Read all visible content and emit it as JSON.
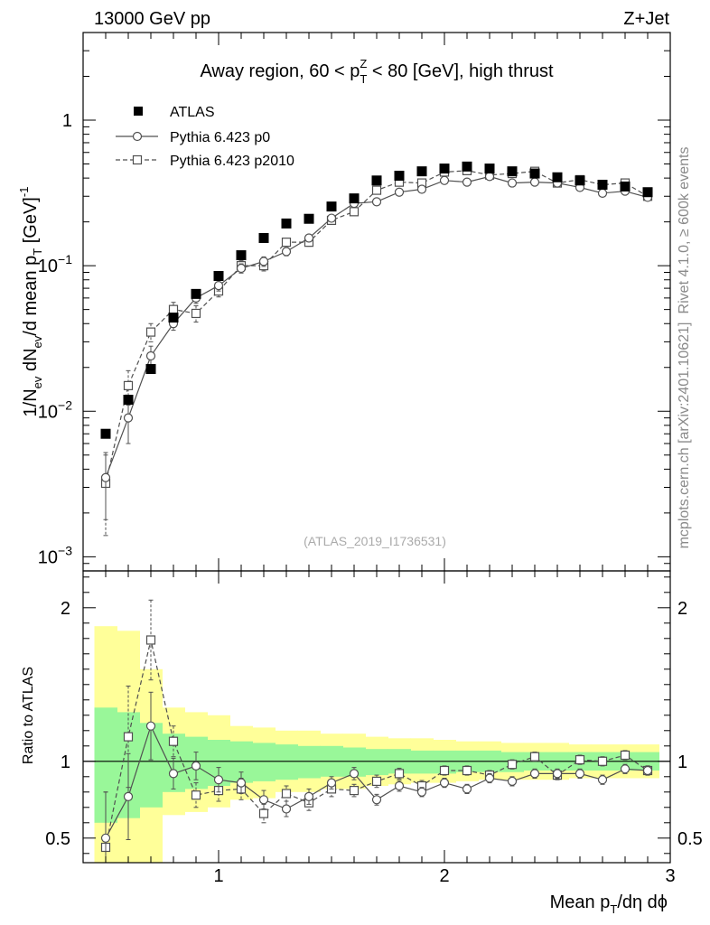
{
  "header": {
    "energy": "13000 GeV pp",
    "process": "Z+Jet"
  },
  "side_labels": {
    "rivet": "Rivet 4.1.0, ≥ 600k events",
    "mcplots": "mcplots.cern.ch [arXiv:2401.10621]"
  },
  "watermark": "(ATLAS_2019_I1736531)",
  "colors": {
    "green_band": "#99f799",
    "yellow_band": "#ffff99",
    "mc_line": "#505050",
    "data": "#000000"
  },
  "chart_data": [
    {
      "type": "scatter",
      "title": "Away region, 60 < pTZ < 80 [GeV], high thrust",
      "title_parts": [
        "Away region, 60 < p",
        "Z",
        "T",
        " < 80 [GeV], high thrust"
      ],
      "ylabel": "1/Nev dNev/d mean pT [GeV]-1",
      "ylabel_parts": [
        "1/N",
        "ev",
        " dN",
        "ev",
        "/d mean p",
        "T",
        " [GeV]",
        "-1"
      ],
      "yscale": "log",
      "ylim": [
        0.0008,
        4
      ],
      "xlim": [
        0.4,
        3.0
      ],
      "yticks": [
        {
          "value": 0.001,
          "base": "10",
          "exp": "−3"
        },
        {
          "value": 0.01,
          "base": "10",
          "exp": "−2"
        },
        {
          "value": 0.1,
          "base": "10",
          "exp": "−1"
        },
        {
          "value": 1,
          "base": "1",
          "exp": ""
        }
      ],
      "x": [
        0.5,
        0.6,
        0.7,
        0.8,
        0.9,
        1.0,
        1.1,
        1.2,
        1.3,
        1.4,
        1.5,
        1.6,
        1.7,
        1.8,
        1.9,
        2.0,
        2.1,
        2.2,
        2.3,
        2.4,
        2.5,
        2.6,
        2.7,
        2.8,
        2.9
      ],
      "series": [
        {
          "name": "ATLAS",
          "style": "data",
          "values": [
            0.007,
            0.012,
            0.0195,
            0.044,
            0.064,
            0.085,
            0.118,
            0.155,
            0.195,
            0.21,
            0.255,
            0.29,
            0.385,
            0.415,
            0.445,
            0.465,
            0.48,
            0.465,
            0.445,
            0.43,
            0.405,
            0.385,
            0.36,
            0.35,
            0.32
          ]
        },
        {
          "name": "Pythia 6.423 p0",
          "style": "solid-circle",
          "values": [
            0.0035,
            0.009,
            0.024,
            0.04,
            0.06,
            0.073,
            0.096,
            0.107,
            0.125,
            0.155,
            0.212,
            0.268,
            0.275,
            0.32,
            0.335,
            0.385,
            0.375,
            0.41,
            0.37,
            0.375,
            0.37,
            0.345,
            0.315,
            0.325,
            0.295
          ],
          "err_low": [
            0.0017,
            0.003,
            0.004,
            0.004,
            0.005,
            0.006,
            0.007,
            0.008,
            0.008,
            0.009,
            0.01,
            0.011,
            0.011,
            0.012,
            0.012,
            0.013,
            0.013,
            0.013,
            0.013,
            0.013,
            0.012,
            0.012,
            0.012,
            0.012,
            0.012
          ],
          "err_high": [
            0.0017,
            0.003,
            0.004,
            0.004,
            0.005,
            0.006,
            0.007,
            0.008,
            0.008,
            0.009,
            0.01,
            0.011,
            0.011,
            0.012,
            0.012,
            0.013,
            0.013,
            0.013,
            0.013,
            0.013,
            0.012,
            0.012,
            0.012,
            0.012,
            0.012
          ]
        },
        {
          "name": "Pythia 6.423 p2010",
          "style": "dashed-square",
          "values": [
            0.0032,
            0.015,
            0.035,
            0.05,
            0.047,
            0.067,
            0.1,
            0.1,
            0.145,
            0.145,
            0.205,
            0.235,
            0.33,
            0.375,
            0.37,
            0.44,
            0.45,
            0.42,
            0.43,
            0.445,
            0.37,
            0.39,
            0.36,
            0.37,
            0.3
          ],
          "err_low": [
            0.0018,
            0.004,
            0.005,
            0.006,
            0.006,
            0.006,
            0.008,
            0.008,
            0.009,
            0.009,
            0.01,
            0.011,
            0.012,
            0.012,
            0.012,
            0.013,
            0.013,
            0.013,
            0.013,
            0.013,
            0.012,
            0.012,
            0.012,
            0.012,
            0.012
          ],
          "err_high": [
            0.0018,
            0.004,
            0.005,
            0.006,
            0.006,
            0.006,
            0.008,
            0.008,
            0.009,
            0.009,
            0.01,
            0.011,
            0.012,
            0.012,
            0.012,
            0.013,
            0.013,
            0.013,
            0.013,
            0.013,
            0.012,
            0.012,
            0.012,
            0.012,
            0.012
          ]
        }
      ],
      "legend": [
        "ATLAS",
        "Pythia 6.423 p0",
        "Pythia 6.423 p2010"
      ],
      "legend_position": "top-left"
    },
    {
      "type": "scatter",
      "ylabel": "Ratio to ATLAS",
      "xlabel": "Mean pT/dη dϕ",
      "xlabel_parts": [
        "Mean p",
        "T",
        "/dη dϕ"
      ],
      "ylim": [
        0.34,
        2.24
      ],
      "xlim": [
        0.4,
        3.0
      ],
      "yticks": [
        0.5,
        1,
        2
      ],
      "ytick_labels": [
        "0.5",
        "1",
        "2"
      ],
      "xticks": [
        1,
        2,
        3
      ],
      "xtick_labels": [
        "1",
        "2",
        "3"
      ],
      "reference": 1,
      "x": [
        0.5,
        0.6,
        0.7,
        0.8,
        0.9,
        1.0,
        1.1,
        1.2,
        1.3,
        1.4,
        1.5,
        1.6,
        1.7,
        1.8,
        1.9,
        2.0,
        2.1,
        2.2,
        2.3,
        2.4,
        2.5,
        2.6,
        2.7,
        2.8,
        2.9
      ],
      "bands": {
        "edges": [
          0.45,
          0.55,
          0.65,
          0.75,
          0.85,
          0.95,
          1.05,
          1.15,
          1.25,
          1.35,
          1.45,
          1.55,
          1.65,
          1.75,
          1.85,
          1.95,
          2.05,
          2.15,
          2.25,
          2.35,
          2.45,
          2.55,
          2.65,
          2.75,
          2.85,
          2.95
        ],
        "yellow_low": [
          0.2,
          0.2,
          0.3,
          0.65,
          0.67,
          0.7,
          0.75,
          0.76,
          0.8,
          0.8,
          0.82,
          0.82,
          0.84,
          0.85,
          0.86,
          0.86,
          0.87,
          0.88,
          0.88,
          0.88,
          0.88,
          0.89,
          0.89,
          0.89,
          0.89
        ],
        "yellow_high": [
          1.88,
          1.85,
          1.6,
          1.35,
          1.32,
          1.3,
          1.23,
          1.22,
          1.2,
          1.2,
          1.18,
          1.18,
          1.16,
          1.15,
          1.15,
          1.14,
          1.13,
          1.13,
          1.12,
          1.12,
          1.12,
          1.11,
          1.11,
          1.11,
          1.11
        ],
        "green_low": [
          0.6,
          0.63,
          0.7,
          0.8,
          0.82,
          0.84,
          0.86,
          0.87,
          0.88,
          0.89,
          0.9,
          0.9,
          0.91,
          0.92,
          0.92,
          0.92,
          0.93,
          0.93,
          0.93,
          0.94,
          0.94,
          0.94,
          0.94,
          0.94,
          0.94
        ],
        "green_high": [
          1.35,
          1.32,
          1.25,
          1.18,
          1.16,
          1.14,
          1.13,
          1.12,
          1.11,
          1.1,
          1.1,
          1.09,
          1.08,
          1.08,
          1.07,
          1.07,
          1.07,
          1.07,
          1.06,
          1.06,
          1.06,
          1.06,
          1.06,
          1.06,
          1.06
        ]
      },
      "series": [
        {
          "name": "Pythia 6.423 p0",
          "style": "solid-circle",
          "values": [
            0.5,
            0.77,
            1.23,
            0.92,
            0.97,
            0.88,
            0.86,
            0.75,
            0.69,
            0.77,
            0.86,
            0.92,
            0.75,
            0.84,
            0.8,
            0.86,
            0.82,
            0.89,
            0.87,
            0.92,
            0.92,
            0.92,
            0.88,
            0.95,
            0.94
          ],
          "err": [
            0.3,
            0.28,
            0.22,
            0.1,
            0.09,
            0.08,
            0.07,
            0.06,
            0.05,
            0.05,
            0.04,
            0.04,
            0.035,
            0.035,
            0.03,
            0.03,
            0.03,
            0.03,
            0.03,
            0.03,
            0.03,
            0.03,
            0.03,
            0.03,
            0.03
          ]
        },
        {
          "name": "Pythia 6.423 p2010",
          "style": "dashed-square",
          "values": [
            0.44,
            1.16,
            1.79,
            1.13,
            0.78,
            0.81,
            0.82,
            0.66,
            0.79,
            0.73,
            0.82,
            0.81,
            0.87,
            0.92,
            0.84,
            0.94,
            0.94,
            0.91,
            0.98,
            1.03,
            0.91,
            1.01,
            1.0,
            1.04,
            0.94
          ],
          "err": [
            0.36,
            0.33,
            0.26,
            0.1,
            0.08,
            0.07,
            0.07,
            0.06,
            0.05,
            0.05,
            0.05,
            0.04,
            0.04,
            0.035,
            0.035,
            0.03,
            0.03,
            0.03,
            0.03,
            0.03,
            0.03,
            0.03,
            0.03,
            0.03,
            0.03
          ]
        }
      ]
    }
  ]
}
